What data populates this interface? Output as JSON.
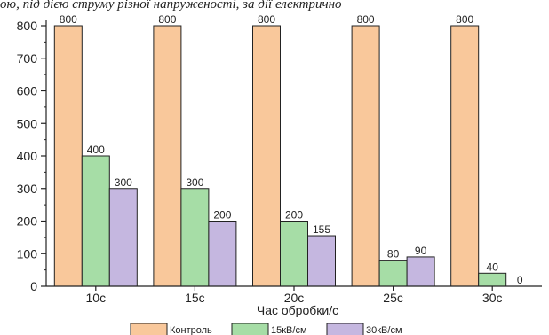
{
  "top_caption": "ою, під дією струму різної напруженості, за дії електрично",
  "chart_data": {
    "type": "bar",
    "categories": [
      "10с",
      "15с",
      "20с",
      "25с",
      "30с"
    ],
    "series": [
      {
        "name": "Контроль",
        "color": "#F9C89B",
        "values": [
          800,
          800,
          800,
          800,
          800
        ],
        "labels": [
          "800",
          "800",
          "800",
          "800",
          "800"
        ]
      },
      {
        "name": "15кВ/см",
        "color": "#A6DDA6",
        "values": [
          400,
          300,
          200,
          80,
          40
        ],
        "labels": [
          "400",
          "300",
          "200",
          "80",
          "40"
        ]
      },
      {
        "name": "30кВ/см",
        "color": "#C5B7E0",
        "values": [
          300,
          200,
          155,
          90,
          0
        ],
        "labels": [
          "300",
          "200",
          "155",
          "90",
          "0"
        ]
      }
    ],
    "xlabel": "Час обробки/с",
    "ylabel": "",
    "ylim": [
      0,
      800
    ],
    "yticks": [
      0,
      100,
      200,
      300,
      400,
      500,
      600,
      700,
      800
    ],
    "grid": false,
    "legend_position": "bottom"
  }
}
